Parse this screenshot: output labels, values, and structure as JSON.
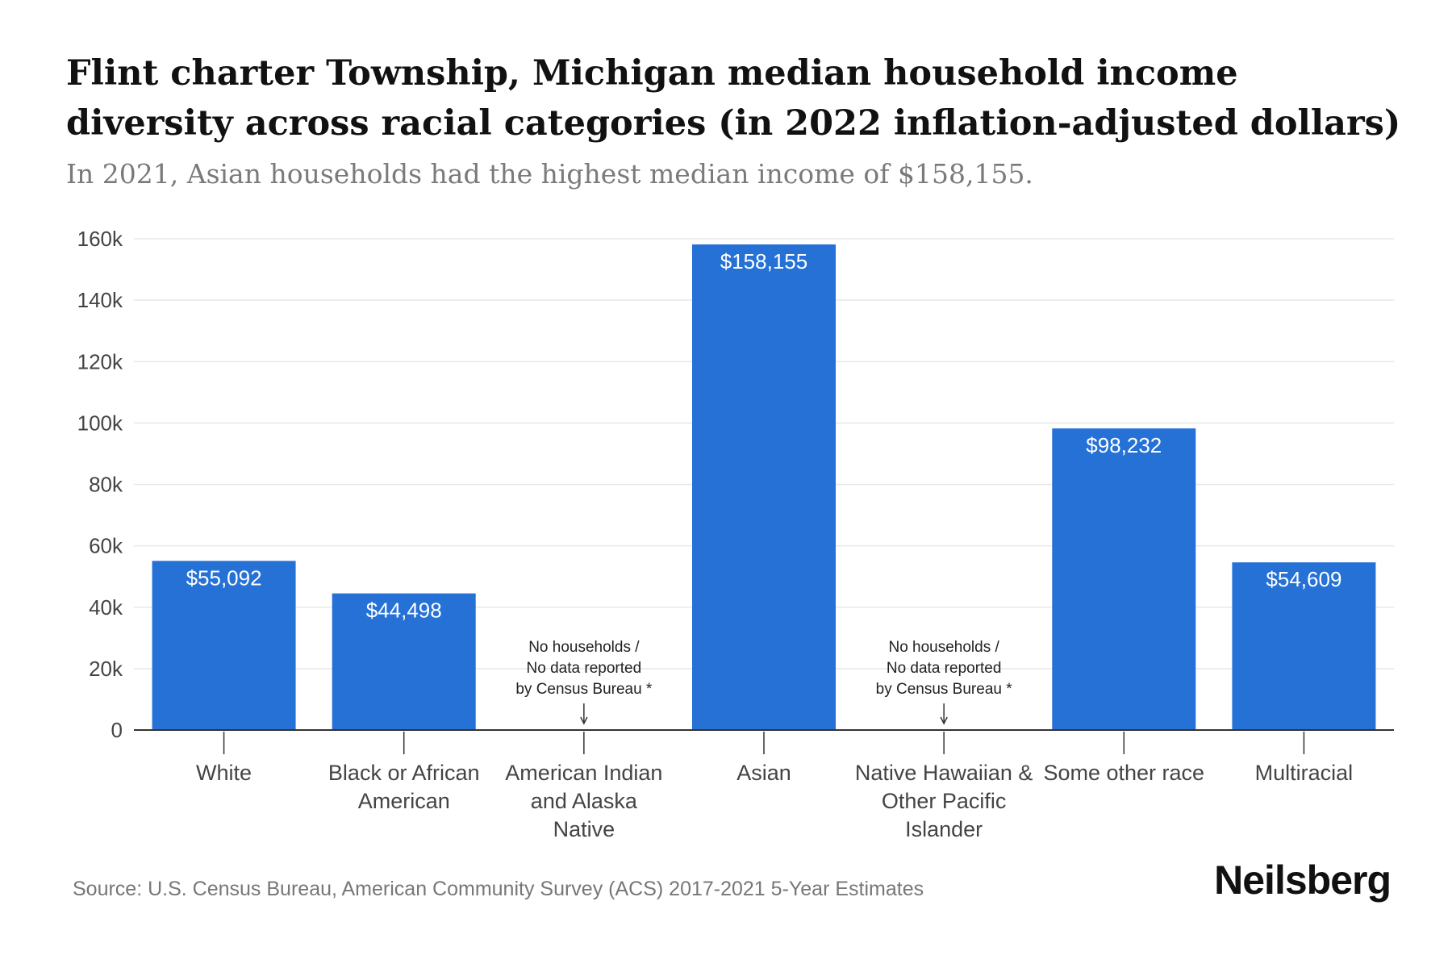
{
  "header": {
    "title": "Flint charter Township, Michigan median household income diversity across racial categories (in 2022 inflation-adjusted dollars)",
    "subtitle": "In 2021, Asian households had the highest median income of $158,155."
  },
  "footer": {
    "source": "Source: U.S. Census Bureau, American Community Survey (ACS) 2017-2021 5-Year Estimates",
    "brand": "Neilsberg"
  },
  "colors": {
    "bar": "#2571d6",
    "bar_label": "#ffffff",
    "gridline": "#e8e8e8",
    "axis": "#333333",
    "tick_text": "#444444"
  },
  "chart_data": {
    "type": "bar",
    "title": "Flint charter Township, Michigan median household income diversity across racial categories (in 2022 inflation-adjusted dollars)",
    "xlabel": "",
    "ylabel": "",
    "ylim": [
      0,
      160000
    ],
    "yticks": [
      0,
      20000,
      40000,
      60000,
      80000,
      100000,
      120000,
      140000,
      160000
    ],
    "ytick_labels": [
      "0",
      "20k",
      "40k",
      "60k",
      "80k",
      "100k",
      "120k",
      "140k",
      "160k"
    ],
    "grid": true,
    "categories": [
      [
        "White"
      ],
      [
        "Black or African",
        "American"
      ],
      [
        "American Indian",
        "and Alaska",
        "Native"
      ],
      [
        "Asian"
      ],
      [
        "Native Hawaiian &",
        "Other Pacific",
        "Islander"
      ],
      [
        "Some other race"
      ],
      [
        "Multiracial"
      ]
    ],
    "values": [
      55092,
      44498,
      null,
      158155,
      null,
      98232,
      54609
    ],
    "value_labels": [
      "$55,092",
      "$44,498",
      null,
      "$158,155",
      null,
      "$98,232",
      "$54,609"
    ],
    "no_data_note": [
      "No households /",
      "No data reported",
      "by Census Bureau *"
    ]
  }
}
